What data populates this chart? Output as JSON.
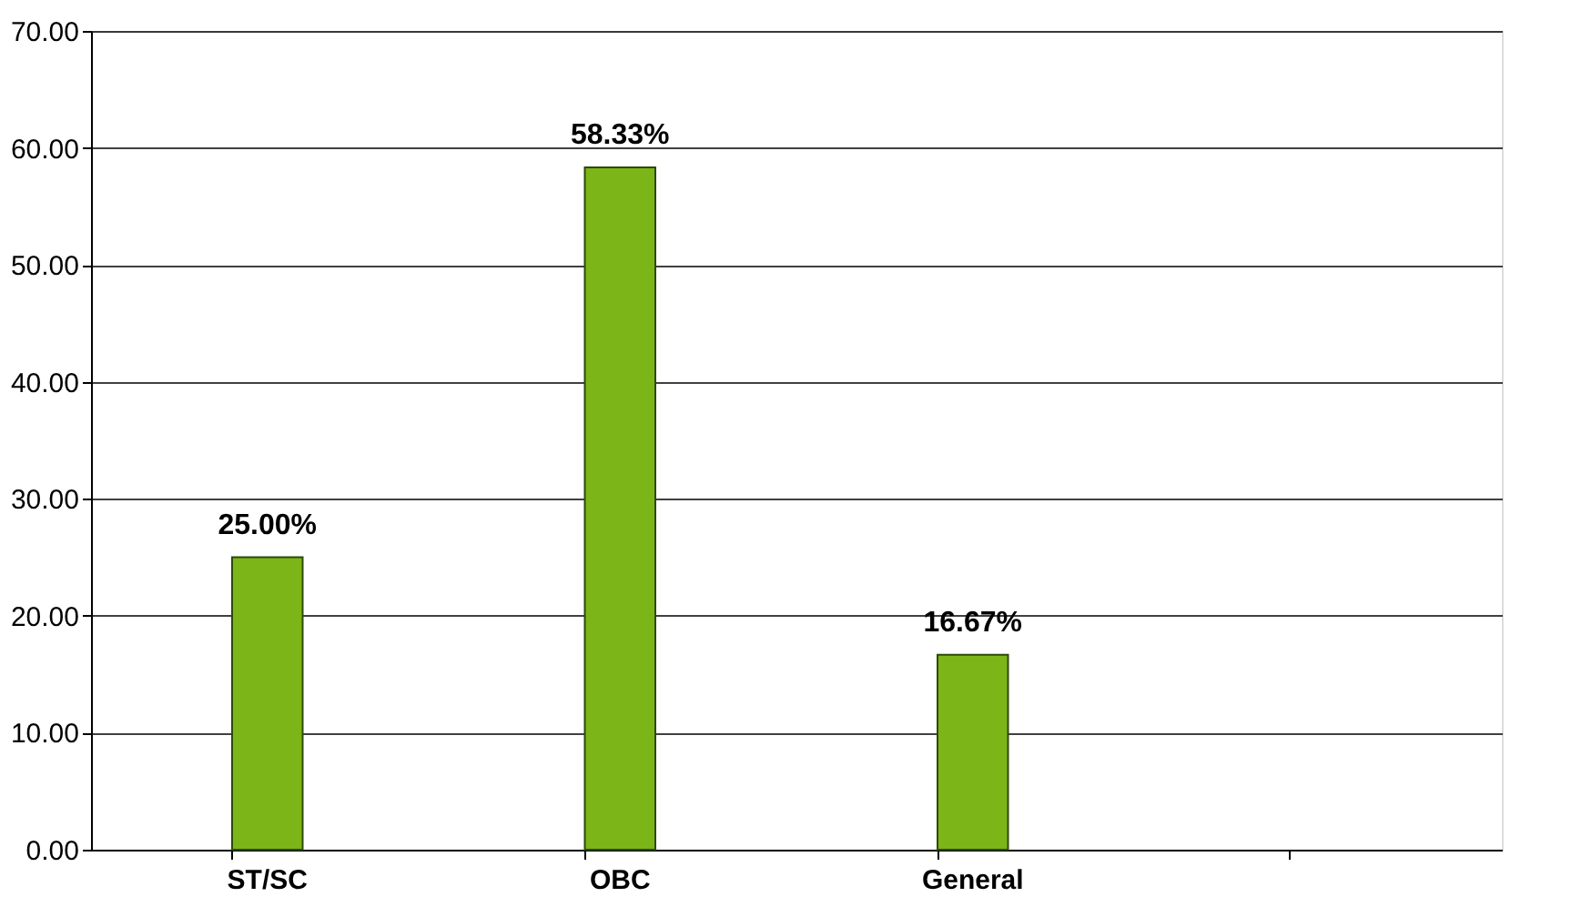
{
  "chart_data": {
    "type": "bar",
    "categories": [
      "ST/SC",
      "OBC",
      "General",
      null
    ],
    "values": [
      25.0,
      58.33,
      16.67,
      null
    ],
    "value_labels": [
      "25.00%",
      "58.33%",
      "16.67%",
      null
    ],
    "color": "#7cb518",
    "ylim": [
      0,
      70
    ],
    "yticks": [
      {
        "value": 0,
        "label": "0.00"
      },
      {
        "value": 10,
        "label": "10.00"
      },
      {
        "value": 20,
        "label": "20.00"
      },
      {
        "value": 30,
        "label": "30.00"
      },
      {
        "value": 40,
        "label": "40.00"
      },
      {
        "value": 50,
        "label": "50.00"
      },
      {
        "value": 60,
        "label": "60.00"
      },
      {
        "value": 70,
        "label": "70.00"
      }
    ],
    "grid": "y"
  }
}
